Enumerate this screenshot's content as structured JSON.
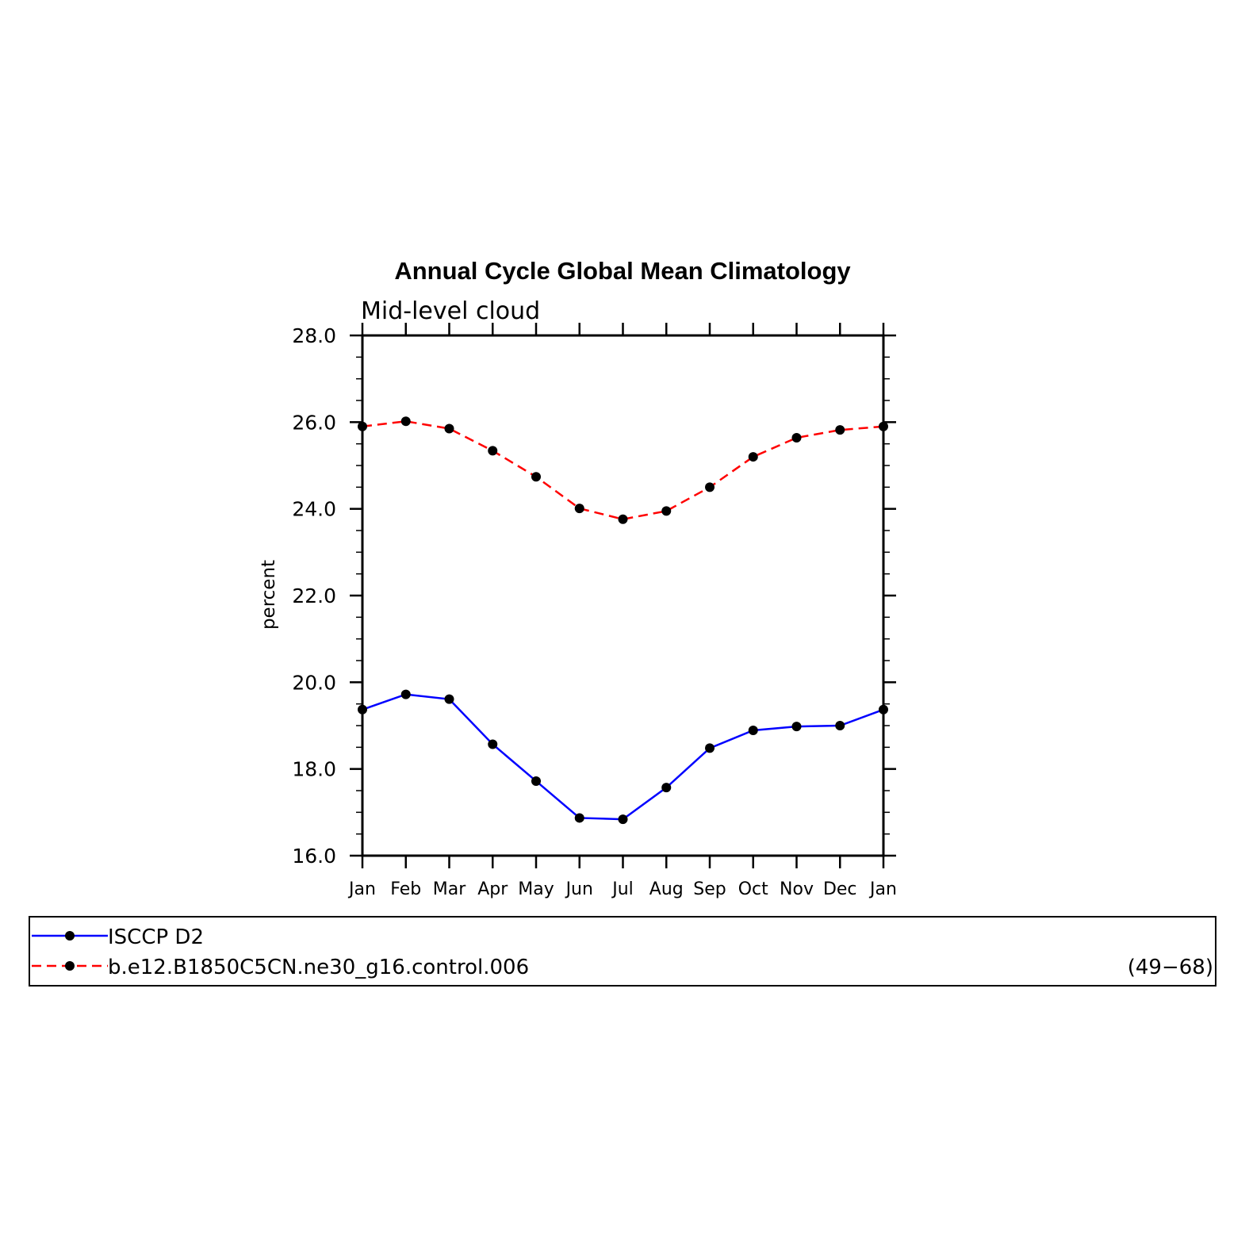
{
  "chart_data": {
    "type": "line",
    "title": "Annual Cycle Global Mean Climatology",
    "subtitle": "Mid-level cloud",
    "xlabel": "",
    "ylabel": "percent",
    "categories": [
      "Jan",
      "Feb",
      "Mar",
      "Apr",
      "May",
      "Jun",
      "Jul",
      "Aug",
      "Sep",
      "Oct",
      "Nov",
      "Dec",
      "Jan"
    ],
    "ylim": [
      16.0,
      28.0
    ],
    "yticks": [
      "16.0",
      "18.0",
      "20.0",
      "22.0",
      "24.0",
      "26.0",
      "28.0"
    ],
    "ytick_values": [
      16,
      18,
      20,
      22,
      24,
      26,
      28
    ],
    "grid": false,
    "series": [
      {
        "name": "ISCCP D2",
        "color": "#0000ff",
        "dash": "solid",
        "values": [
          19.37,
          19.72,
          19.61,
          18.57,
          17.72,
          16.87,
          16.84,
          17.57,
          18.48,
          18.89,
          18.98,
          19.0,
          19.37
        ]
      },
      {
        "name": "b.e12.B1850C5CN.ne30_g16.control.006",
        "color": "#ff0000",
        "dash": "dashed",
        "values": [
          25.9,
          26.02,
          25.85,
          25.34,
          24.74,
          24.01,
          23.76,
          23.95,
          24.5,
          25.2,
          25.64,
          25.82,
          25.9
        ]
      }
    ],
    "legend": {
      "placement": "bottom",
      "years": "(49−68)"
    }
  }
}
